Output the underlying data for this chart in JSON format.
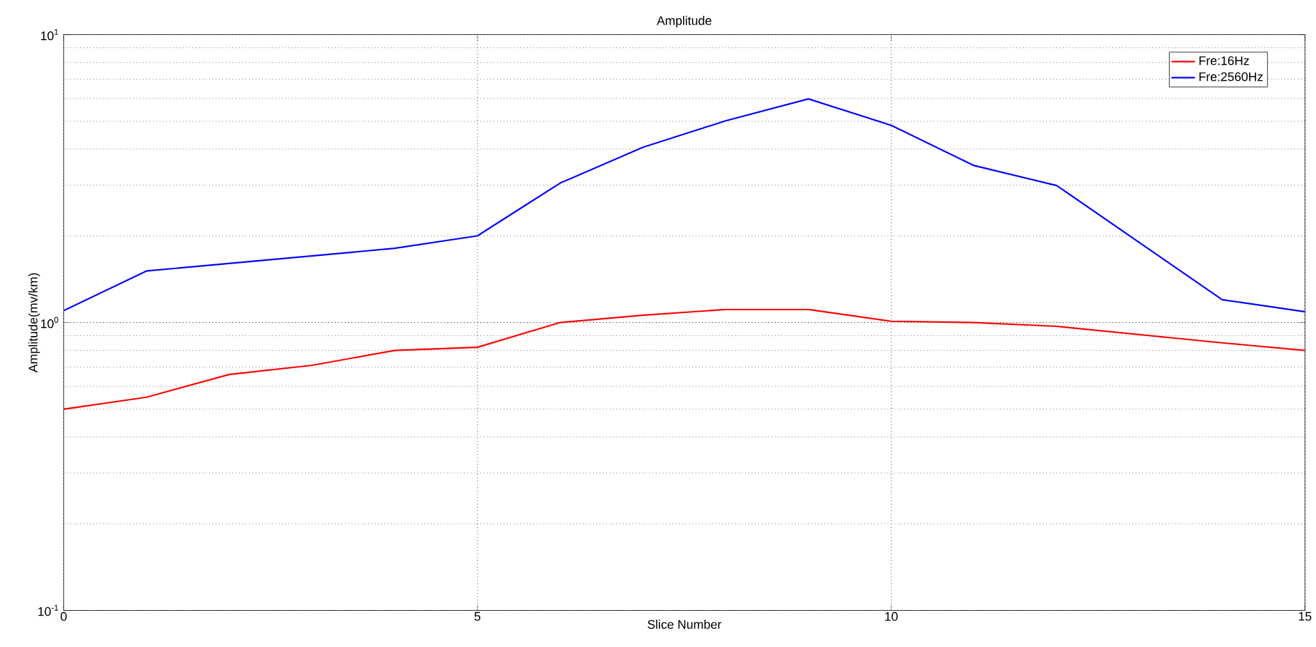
{
  "chart_data": {
    "type": "line",
    "title": "Amplitude",
    "xlabel": "Slice Number",
    "ylabel": "Amplitude(mv/km)",
    "xlim": [
      0,
      15
    ],
    "xticks": [
      0,
      5,
      10,
      15
    ],
    "ylim": [
      0.1,
      10
    ],
    "yticks": [
      {
        "value": 0.1,
        "label": "10$^{-1}$"
      },
      {
        "value": 1,
        "label": "10$^{0}$"
      },
      {
        "value": 10,
        "label": "10$^{1}$"
      }
    ],
    "log": "y",
    "grid": true,
    "legend": "top right",
    "marker": "none",
    "line_style": "solid",
    "series": [
      {
        "name": "Fre:16Hz",
        "color": "#ff0000",
        "x": [
          0,
          1,
          2,
          3,
          4,
          5,
          6,
          7,
          8,
          9,
          10,
          11,
          12,
          14,
          15
        ],
        "values": [
          0.5,
          0.55,
          0.66,
          0.71,
          0.8,
          0.82,
          1.0,
          1.06,
          1.11,
          1.11,
          1.01,
          1.0,
          0.97,
          0.85,
          0.8
        ]
      },
      {
        "name": "Fre:2560Hz",
        "color": "#0000ff",
        "x": [
          0,
          1,
          4,
          5,
          6,
          7,
          8,
          9,
          10,
          11,
          12,
          14,
          15
        ],
        "values": [
          1.1,
          1.51,
          1.81,
          2.0,
          3.05,
          4.06,
          5.02,
          5.98,
          4.84,
          3.51,
          2.99,
          1.2,
          1.09
        ]
      }
    ]
  }
}
